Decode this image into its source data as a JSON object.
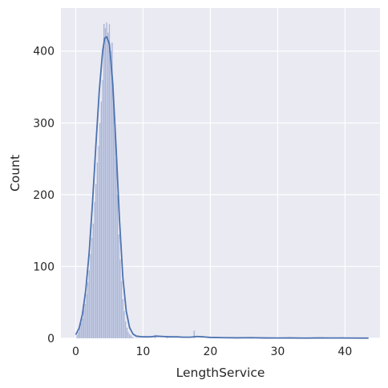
{
  "chart_data": {
    "type": "bar",
    "title": "",
    "xlabel": "LengthService",
    "ylabel": "Count",
    "xlim": [
      -2.2,
      45.2
    ],
    "ylim": [
      0,
      460
    ],
    "xticks": [
      0,
      10,
      20,
      30,
      40
    ],
    "yticks": [
      0,
      100,
      200,
      300,
      400
    ],
    "grid": true,
    "style": "seaborn-darkgrid",
    "colors": {
      "background": "#eaeaf2",
      "grid": "#ffffff",
      "bar_fill": "#aab5d6",
      "bar_edge": "#e6e9f4",
      "kde_line": "#4c72b0"
    },
    "histogram": {
      "bin_width": 0.2,
      "bins": [
        {
          "x": 0.2,
          "count": 5
        },
        {
          "x": 0.4,
          "count": 9
        },
        {
          "x": 0.6,
          "count": 14
        },
        {
          "x": 0.8,
          "count": 22
        },
        {
          "x": 1.0,
          "count": 28
        },
        {
          "x": 1.2,
          "count": 40
        },
        {
          "x": 1.4,
          "count": 48
        },
        {
          "x": 1.6,
          "count": 62
        },
        {
          "x": 1.8,
          "count": 78
        },
        {
          "x": 2.0,
          "count": 95
        },
        {
          "x": 2.2,
          "count": 118
        },
        {
          "x": 2.4,
          "count": 140
        },
        {
          "x": 2.6,
          "count": 160
        },
        {
          "x": 2.8,
          "count": 190
        },
        {
          "x": 3.0,
          "count": 215
        },
        {
          "x": 3.2,
          "count": 245
        },
        {
          "x": 3.4,
          "count": 268
        },
        {
          "x": 3.6,
          "count": 300
        },
        {
          "x": 3.8,
          "count": 330
        },
        {
          "x": 4.0,
          "count": 360
        },
        {
          "x": 4.2,
          "count": 438
        },
        {
          "x": 4.4,
          "count": 432
        },
        {
          "x": 4.6,
          "count": 440
        },
        {
          "x": 4.8,
          "count": 426
        },
        {
          "x": 5.0,
          "count": 438
        },
        {
          "x": 5.2,
          "count": 400
        },
        {
          "x": 5.4,
          "count": 412
        },
        {
          "x": 5.6,
          "count": 340
        },
        {
          "x": 5.8,
          "count": 300
        },
        {
          "x": 6.0,
          "count": 250
        },
        {
          "x": 6.2,
          "count": 200
        },
        {
          "x": 6.4,
          "count": 145
        },
        {
          "x": 6.6,
          "count": 110
        },
        {
          "x": 6.8,
          "count": 80
        },
        {
          "x": 7.0,
          "count": 55
        },
        {
          "x": 7.2,
          "count": 38
        },
        {
          "x": 7.4,
          "count": 24
        },
        {
          "x": 7.6,
          "count": 15
        },
        {
          "x": 7.8,
          "count": 9
        },
        {
          "x": 8.0,
          "count": 6
        },
        {
          "x": 8.2,
          "count": 4
        },
        {
          "x": 8.4,
          "count": 2
        },
        {
          "x": 8.6,
          "count": 1
        },
        {
          "x": 9.0,
          "count": 1
        },
        {
          "x": 9.4,
          "count": 1
        },
        {
          "x": 11.8,
          "count": 5
        },
        {
          "x": 13.6,
          "count": 3
        },
        {
          "x": 17.6,
          "count": 11
        },
        {
          "x": 24.0,
          "count": 1
        },
        {
          "x": 26.4,
          "count": 2
        },
        {
          "x": 31.6,
          "count": 2
        },
        {
          "x": 33.6,
          "count": 1
        },
        {
          "x": 36.6,
          "count": 2
        },
        {
          "x": 39.6,
          "count": 2
        },
        {
          "x": 43.2,
          "count": 1
        }
      ]
    },
    "kde": {
      "x": [
        0,
        0.5,
        1,
        1.5,
        2,
        2.5,
        3,
        3.5,
        4,
        4.3,
        4.6,
        5,
        5.5,
        6,
        6.5,
        7,
        7.5,
        8,
        8.5,
        9,
        10,
        11,
        12,
        13,
        14,
        15,
        16,
        17,
        18,
        19,
        20,
        22,
        24,
        26,
        28,
        30,
        32,
        34,
        36,
        38,
        40,
        42,
        43.5
      ],
      "y": [
        5,
        14,
        34,
        68,
        120,
        190,
        270,
        345,
        400,
        418,
        420,
        410,
        355,
        265,
        165,
        85,
        38,
        15,
        6,
        3,
        2,
        2,
        3,
        2.5,
        2,
        2,
        1.5,
        1.5,
        2.5,
        2,
        1.2,
        0.8,
        0.6,
        0.8,
        0.5,
        0.4,
        0.5,
        0.3,
        0.5,
        0.4,
        0.4,
        0.3,
        0.3
      ]
    }
  }
}
